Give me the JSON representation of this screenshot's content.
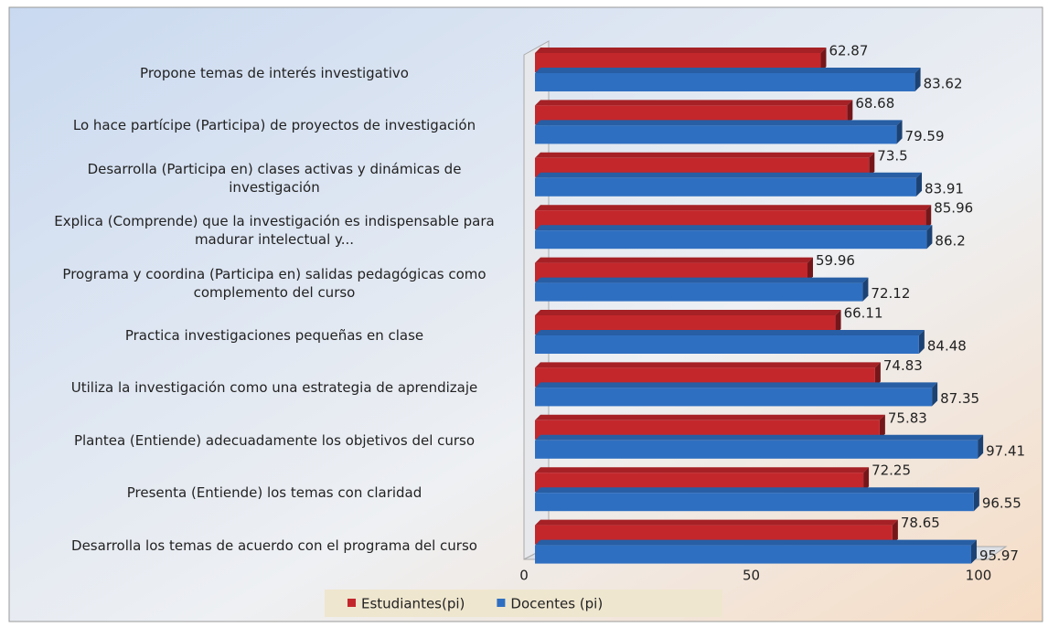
{
  "chart_data": {
    "type": "bar",
    "orientation": "horizontal",
    "categories": [
      "Propone temas de interés investigativo",
      "Lo hace partícipe (Participa)  de proyectos de investigación",
      "Desarrolla (Participa en) clases activas y dinámicas de investigación",
      "Explica (Comprende) que la investigación es indispensable para madurar intelectual y...",
      "Programa y coordina (Participa en) salidas pedagógicas como complemento del curso",
      "Practica investigaciones pequeñas en clase",
      "Utiliza la investigación como una estrategia de aprendizaje",
      "Plantea (Entiende) adecuadamente los objetivos del curso",
      "Presenta (Entiende) los temas con claridad",
      "Desarrolla   los temas de acuerdo con el programa del curso"
    ],
    "series": [
      {
        "name": "Estudiantes(pi)",
        "color": "#c3272c",
        "values": [
          62.87,
          68.68,
          73.5,
          85.96,
          59.96,
          66.11,
          74.83,
          75.83,
          72.25,
          78.65
        ]
      },
      {
        "name": "Docentes (pi)",
        "color": "#2f6fc1",
        "values": [
          83.62,
          79.59,
          83.91,
          86.2,
          72.12,
          84.48,
          87.35,
          97.41,
          96.55,
          95.97
        ]
      }
    ],
    "xlim": [
      0,
      100
    ],
    "xticks": [
      0,
      50,
      100
    ],
    "legend": "bottom"
  }
}
